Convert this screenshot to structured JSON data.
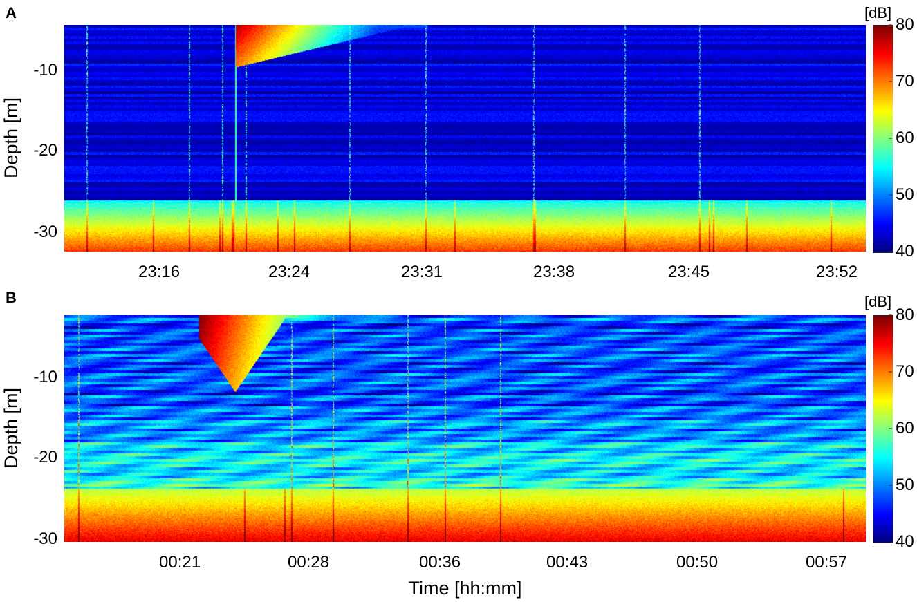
{
  "colormap": "jet",
  "xlabel": "Time [hh:mm]",
  "panels": [
    {
      "letter": "A",
      "ylabel": "Depth [m]",
      "colorbar": {
        "unit": "[dB]",
        "ticks": [
          80,
          70,
          60,
          50,
          40
        ],
        "range": [
          40,
          80
        ]
      },
      "yticks": [
        "-10",
        "-20",
        "-30"
      ],
      "xticks": [
        "23:16",
        "23:24",
        "23:31",
        "23:38",
        "23:45",
        "23:52"
      ]
    },
    {
      "letter": "B",
      "ylabel": "Depth [m]",
      "colorbar": {
        "unit": "[dB]",
        "ticks": [
          80,
          70,
          60,
          50,
          40
        ],
        "range": [
          40,
          80
        ]
      },
      "yticks": [
        "-10",
        "-20",
        "-30"
      ],
      "xticks": [
        "00:21",
        "00:28",
        "00:36",
        "00:43",
        "00:50",
        "00:57"
      ]
    }
  ],
  "chart_data": [
    {
      "type": "heatmap",
      "title": "",
      "xlabel": "",
      "ylabel": "Depth [m]",
      "x_ticks": [
        "23:16",
        "23:24",
        "23:31",
        "23:38",
        "23:45",
        "23:52"
      ],
      "y_ticks": [
        -10,
        -20,
        -30
      ],
      "ylim": [
        -32.5,
        -4
      ],
      "color_range_db": [
        40,
        80
      ],
      "colorbar_label": "[dB]",
      "features": {
        "background_db": 44,
        "surface_plume": {
          "start_time": "23:20",
          "end_time": "23:28",
          "max_depth_m": -9,
          "peak_db": 78
        },
        "vertical_line_time": "23:20",
        "seabed_band_depth_m": [
          -26,
          -32.5
        ],
        "seabed_db": [
          55,
          73
        ]
      }
    },
    {
      "type": "heatmap",
      "title": "",
      "xlabel": "Time [hh:mm]",
      "ylabel": "Depth [m]",
      "x_ticks": [
        "00:21",
        "00:28",
        "00:36",
        "00:43",
        "00:50",
        "00:57"
      ],
      "y_ticks": [
        -10,
        -20,
        -30
      ],
      "ylim": [
        -30.5,
        -3
      ],
      "color_range_db": [
        40,
        80
      ],
      "colorbar_label": "[dB]",
      "features": {
        "background_db": 48,
        "surface_plume": {
          "start_time": "00:22",
          "end_time": "00:30",
          "max_depth_m": -12,
          "peak_db": 80
        },
        "seabed_band_depth_m": [
          -24,
          -30.5
        ],
        "seabed_db": [
          62,
          76
        ]
      }
    }
  ]
}
